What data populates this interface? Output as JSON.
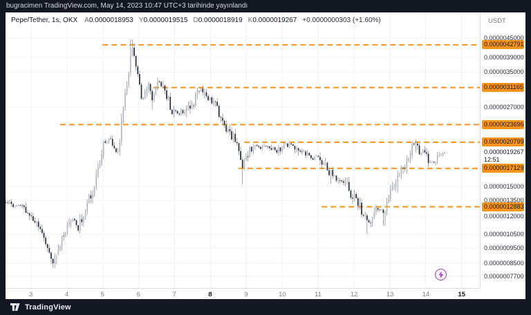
{
  "top_bar": {
    "text": "bugracimen TradingView.com, May 14, 2023 10:47 UTC+3 tarihinde yayınlandı"
  },
  "header": {
    "symbol": "Pepe/Tether, 1s, OKX",
    "ohlc": [
      {
        "k": "A",
        "v": "0.0000018953"
      },
      {
        "k": "Y",
        "v": "0.0000019515"
      },
      {
        "k": "D",
        "v": "0.0000018919"
      },
      {
        "k": "K",
        "v": "0.0000019267"
      }
    ],
    "change": "+0.0000000303 (+1.60%)"
  },
  "axis": {
    "currency": "USDT"
  },
  "footer": {
    "brand": "TradingView"
  },
  "colors": {
    "accent_orange": "#f7941d",
    "bg_dark": "#131722",
    "grid": "#eef2f9",
    "candle_up": "#b3b7c1",
    "candle_down": "#252a38",
    "wick": "#7d818c",
    "marker_purple": "#a845c0"
  },
  "chart_data": {
    "type": "candlestick",
    "title": "Pepe/Tether, 1s, OKX",
    "exchange": "OKX",
    "timeframe": "1 hour",
    "scale": "log",
    "x_axis": {
      "unit": "day of May 2023",
      "range": [
        2.29,
        15.51
      ],
      "ticks": [
        {
          "label": "3",
          "day": 3,
          "bold": false
        },
        {
          "label": "4",
          "day": 4,
          "bold": false
        },
        {
          "label": "5",
          "day": 5,
          "bold": false
        },
        {
          "label": "6",
          "day": 6,
          "bold": false
        },
        {
          "label": "7",
          "day": 7,
          "bold": false
        },
        {
          "label": "8",
          "day": 8,
          "bold": true
        },
        {
          "label": "9",
          "day": 9,
          "bold": false
        },
        {
          "label": "10",
          "day": 10,
          "bold": false
        },
        {
          "label": "11",
          "day": 11,
          "bold": false
        },
        {
          "label": "12",
          "day": 12,
          "bold": false
        },
        {
          "label": "13",
          "day": 13,
          "bold": false
        },
        {
          "label": "14",
          "day": 14,
          "bold": false
        },
        {
          "label": "15",
          "day": 15,
          "bold": true
        }
      ]
    },
    "y_axis": {
      "unit": "USDT",
      "range": [
        7.1e-07,
        5.2e-06
      ],
      "ticks": [
        {
          "label": "0.0000045000",
          "price": 4.5e-06
        },
        {
          "label": "0.0000039000",
          "price": 3.9e-06
        },
        {
          "label": "0.0000035000",
          "price": 3.5e-06
        },
        {
          "label": "0.0000027000",
          "price": 2.7e-06
        },
        {
          "label": "0.0000015000",
          "price": 1.5e-06
        },
        {
          "label": "0.0000013500",
          "price": 1.35e-06
        },
        {
          "label": "0.0000012000",
          "price": 1.2e-06
        },
        {
          "label": "0.0000010500",
          "price": 1.05e-06
        },
        {
          "label": "0.0000009500",
          "price": 9.5e-07
        },
        {
          "label": "0.0000008500",
          "price": 8.5e-07
        },
        {
          "label": "0.0000007700",
          "price": 7.7e-07
        }
      ]
    },
    "levels": [
      {
        "label": "0.0000042791",
        "price": 4.2791e-06,
        "start_day": 4.99
      },
      {
        "label": "0.0000031165",
        "price": 3.1165e-06,
        "start_day": 6.41
      },
      {
        "label": "0.0000023696",
        "price": 2.3696e-06,
        "start_day": 3.81
      },
      {
        "label": "0.0000020799",
        "price": 2.0799e-06,
        "start_day": 8.94
      },
      {
        "label": "0.0000017129",
        "price": 1.7129e-06,
        "start_day": 8.78
      },
      {
        "label": "0.0000012883",
        "price": 1.2883e-06,
        "start_day": 11.1
      }
    ],
    "last_price": {
      "label": "0.0000019267",
      "price": 1.9267e-06,
      "countdown": "12:51"
    },
    "marker": {
      "type": "flash",
      "day": 14.45
    },
    "price_path": [
      [
        2.3,
        1.33e-06
      ],
      [
        2.52,
        1.28e-06
      ],
      [
        2.71,
        1.32e-06
      ],
      [
        3.0,
        1.19e-06
      ],
      [
        3.25,
        1.1e-06
      ],
      [
        3.44,
        9.7e-07
      ],
      [
        3.6,
        8.5e-07
      ],
      [
        3.77,
        9.5e-07
      ],
      [
        3.97,
        1.1e-06
      ],
      [
        4.16,
        1.17e-06
      ],
      [
        4.3,
        1.1e-06
      ],
      [
        4.45,
        1.22e-06
      ],
      [
        4.61,
        1.38e-06
      ],
      [
        4.76,
        1.49e-06
      ],
      [
        4.88,
        1.7e-06
      ],
      [
        5.03,
        2.13e-06
      ],
      [
        5.13,
        2.08e-06
      ],
      [
        5.22,
        2.16e-06
      ],
      [
        5.32,
        2.03e-06
      ],
      [
        5.42,
        1.88e-06
      ],
      [
        5.51,
        2.33e-06
      ],
      [
        5.61,
        2.94e-06
      ],
      [
        5.71,
        3.5e-06
      ],
      [
        5.8,
        4.25e-06
      ],
      [
        5.9,
        3.77e-06
      ],
      [
        6.0,
        3.24e-06
      ],
      [
        6.09,
        2.8e-06
      ],
      [
        6.19,
        3e-06
      ],
      [
        6.29,
        3.24e-06
      ],
      [
        6.39,
        2.85e-06
      ],
      [
        6.54,
        3.3e-06
      ],
      [
        6.67,
        3.16e-06
      ],
      [
        6.77,
        2.94e-06
      ],
      [
        6.93,
        2.64e-06
      ],
      [
        7.06,
        2.57e-06
      ],
      [
        7.2,
        2.61e-06
      ],
      [
        7.35,
        2.64e-06
      ],
      [
        7.51,
        2.78e-06
      ],
      [
        7.64,
        3e-06
      ],
      [
        7.74,
        3.07e-06
      ],
      [
        7.87,
        2.94e-06
      ],
      [
        7.99,
        2.86e-06
      ],
      [
        8.13,
        2.78e-06
      ],
      [
        8.24,
        2.51e-06
      ],
      [
        8.36,
        2.33e-06
      ],
      [
        8.51,
        2.22e-06
      ],
      [
        8.65,
        2.16e-06
      ],
      [
        8.78,
        2e-06
      ],
      [
        8.9,
        1.75e-06
      ],
      [
        9.02,
        1.88e-06
      ],
      [
        9.13,
        2e-06
      ],
      [
        9.25,
        2.05e-06
      ],
      [
        9.38,
        1.97e-06
      ],
      [
        9.52,
        2.03e-06
      ],
      [
        9.67,
        2e-06
      ],
      [
        9.83,
        1.93e-06
      ],
      [
        9.96,
        2e-06
      ],
      [
        10.1,
        2.03e-06
      ],
      [
        10.25,
        2.05e-06
      ],
      [
        10.41,
        1.97e-06
      ],
      [
        10.56,
        1.93e-06
      ],
      [
        10.72,
        1.87e-06
      ],
      [
        10.87,
        1.83e-06
      ],
      [
        10.99,
        1.9e-06
      ],
      [
        11.12,
        1.79e-06
      ],
      [
        11.26,
        1.7e-06
      ],
      [
        11.38,
        1.64e-06
      ],
      [
        11.51,
        1.59e-06
      ],
      [
        11.65,
        1.56e-06
      ],
      [
        11.8,
        1.53e-06
      ],
      [
        11.9,
        1.43e-06
      ],
      [
        12.03,
        1.36e-06
      ],
      [
        12.15,
        1.31e-06
      ],
      [
        12.27,
        1.22e-06
      ],
      [
        12.38,
        1.13e-06
      ],
      [
        12.5,
        1.18e-06
      ],
      [
        12.61,
        1.25e-06
      ],
      [
        12.73,
        1.28e-06
      ],
      [
        12.83,
        1.22e-06
      ],
      [
        12.92,
        1.31e-06
      ],
      [
        13.04,
        1.45e-06
      ],
      [
        13.16,
        1.59e-06
      ],
      [
        13.27,
        1.66e-06
      ],
      [
        13.39,
        1.68e-06
      ],
      [
        13.5,
        1.84e-06
      ],
      [
        13.62,
        2.02e-06
      ],
      [
        13.7,
        2.06e-06
      ],
      [
        13.81,
        1.93e-06
      ],
      [
        13.93,
        1.97e-06
      ],
      [
        14.04,
        1.87e-06
      ],
      [
        14.16,
        1.79e-06
      ],
      [
        14.28,
        1.84e-06
      ],
      [
        14.39,
        1.89e-06
      ],
      [
        14.53,
        1.9267e-06
      ]
    ],
    "wick_events": [
      {
        "day": 3.6,
        "low": 8.2e-07
      },
      {
        "day": 5.8,
        "high": 4.45e-06
      },
      {
        "day": 8.9,
        "low": 1.52e-06
      },
      {
        "day": 12.38,
        "low": 1.05e-06
      },
      {
        "day": 12.83,
        "low": 1.12e-06
      }
    ]
  }
}
